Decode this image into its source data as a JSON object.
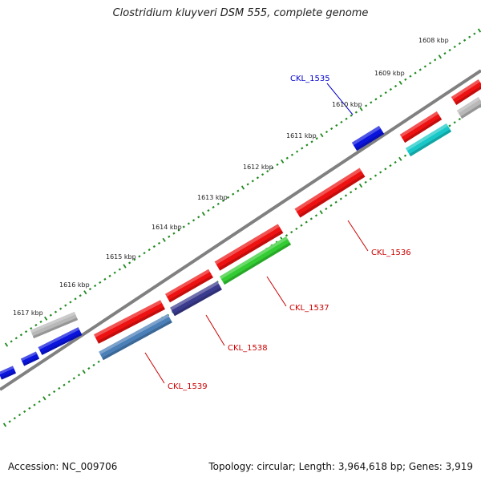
{
  "title": "Clostridium kluyveri DSM 555, complete genome",
  "footer": {
    "accession": "Accession: NC_009706",
    "info": "Topology: circular; Length: 3,964,618 bp; Genes: 3,919"
  },
  "kbp_labels": [
    "1608 kbp",
    "1609 kbp",
    "1610 kbp",
    "1611 kbp",
    "1612 kbp",
    "1613 kbp",
    "1614 kbp",
    "1615 kbp",
    "1616 kbp",
    "1617 kbp"
  ],
  "gene_labels": [
    {
      "text": "CKL_1535",
      "color": "#0000cc"
    },
    {
      "text": "CKL_1536",
      "color": "#cc0000"
    },
    {
      "text": "CKL_1537",
      "color": "#cc0000"
    },
    {
      "text": "CKL_1538",
      "color": "#cc0000"
    },
    {
      "text": "CKL_1539",
      "color": "#cc0000"
    }
  ],
  "colors": {
    "backbone": "#808080",
    "ticks": "#1f8a1f",
    "red": "#ee1111",
    "blue": "#0a14dd",
    "gray": "#b8b8b8",
    "cyan": "#18c8c8",
    "green": "#33cc33",
    "navy": "#3a3a8e",
    "steel": "#4a7fb8"
  }
}
